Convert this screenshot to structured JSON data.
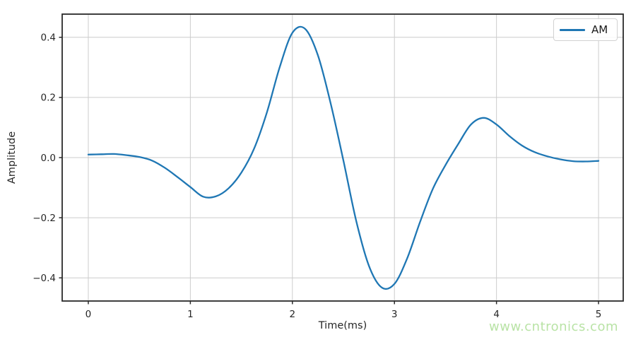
{
  "chart_data": {
    "type": "line",
    "title": "",
    "xlabel": "Time(ms)",
    "ylabel": "Amplitude",
    "xlim": [
      -0.256,
      5.242
    ],
    "ylim": [
      -0.477,
      0.477
    ],
    "grid": true,
    "x_tick_values": [
      0,
      1,
      2,
      3,
      4,
      5
    ],
    "x_tick_labels": [
      "0",
      "1",
      "2",
      "3",
      "4",
      "5"
    ],
    "y_tick_values": [
      0.4,
      0.2,
      0.0,
      -0.2,
      -0.4
    ],
    "y_tick_labels": [
      "0.4",
      "0.2",
      "0.0",
      "−0.2",
      "−0.4"
    ],
    "legend": {
      "position": "upper right",
      "entries": [
        "AM"
      ]
    },
    "series": [
      {
        "name": "AM",
        "color": "#1f77b4",
        "x": [
          0.0,
          0.125,
          0.25,
          0.375,
          0.5,
          0.625,
          0.75,
          0.875,
          1.0,
          1.125,
          1.25,
          1.375,
          1.5,
          1.625,
          1.75,
          1.875,
          2.0,
          2.125,
          2.25,
          2.375,
          2.5,
          2.625,
          2.75,
          2.875,
          3.0,
          3.125,
          3.25,
          3.375,
          3.5,
          3.625,
          3.75,
          3.875,
          4.0,
          4.125,
          4.25,
          4.375,
          4.5,
          4.625,
          4.75,
          4.875,
          5.0
        ],
        "y": [
          0.01,
          0.011,
          0.012,
          0.008,
          0.002,
          -0.01,
          -0.034,
          -0.065,
          -0.098,
          -0.13,
          -0.129,
          -0.102,
          -0.05,
          0.03,
          0.15,
          0.3,
          0.415,
          0.428,
          0.34,
          0.18,
          -0.01,
          -0.21,
          -0.36,
          -0.432,
          -0.42,
          -0.335,
          -0.215,
          -0.105,
          -0.025,
          0.045,
          0.11,
          0.132,
          0.11,
          0.072,
          0.04,
          0.018,
          0.004,
          -0.006,
          -0.012,
          -0.013,
          -0.011
        ]
      }
    ]
  },
  "colors": {
    "grid": "#cccccc",
    "spine": "#2a2a2a",
    "tick_text": "#262626",
    "series_blue": "#1f77b4",
    "watermark_green": "#b9e3a6"
  },
  "watermark": {
    "text": "www.cntronics.com"
  }
}
